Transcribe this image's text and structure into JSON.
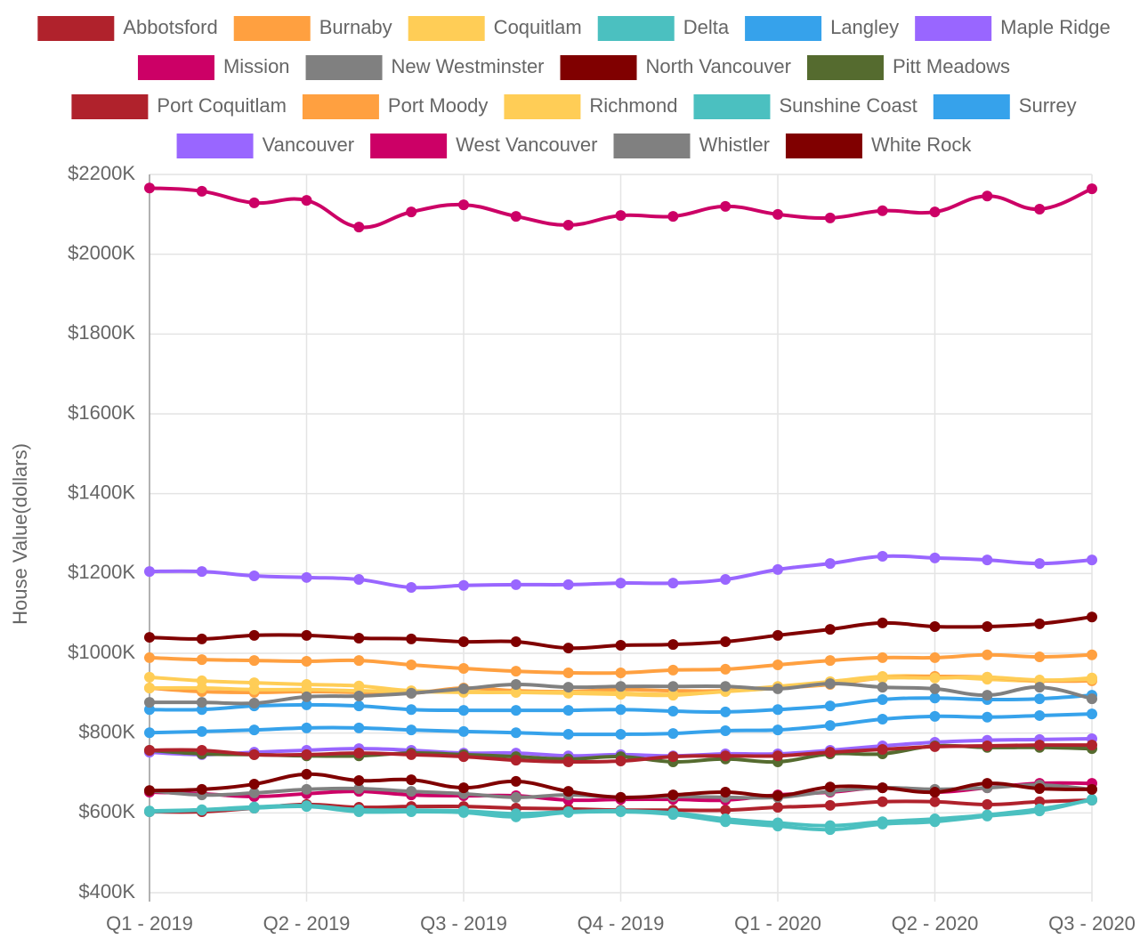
{
  "chart_data": {
    "type": "line",
    "y_label": "House Value(dollars)",
    "categories": [
      "Q1 - 2019",
      null,
      null,
      "Q2 - 2019",
      null,
      null,
      "Q3 - 2019",
      null,
      null,
      "Q4 - 2019",
      null,
      null,
      "Q1 - 2020",
      null,
      null,
      "Q2 - 2020",
      null,
      null,
      "Q3 - 2020"
    ],
    "ylim": [
      400000,
      2200000
    ],
    "yticks": [
      {
        "value": 400000,
        "label": "$400K"
      },
      {
        "value": 600000,
        "label": "$600K"
      },
      {
        "value": 800000,
        "label": "$800K"
      },
      {
        "value": 1000000,
        "label": "$1000K"
      },
      {
        "value": 1200000,
        "label": "$1200K"
      },
      {
        "value": 1400000,
        "label": "$1400K"
      },
      {
        "value": 1600000,
        "label": "$1600K"
      },
      {
        "value": 1800000,
        "label": "$1800K"
      },
      {
        "value": 2000000,
        "label": "$2000K"
      },
      {
        "value": 2200000,
        "label": "$2200K"
      }
    ],
    "grid": true,
    "legend": "top",
    "series": [
      {
        "name": "Abbotsford",
        "color": "#b0222c",
        "values": [
          603000,
          603000,
          612000,
          621000,
          614000,
          616000,
          616000,
          612000,
          610000,
          607000,
          607000,
          607000,
          614000,
          619000,
          628000,
          628000,
          621000,
          628000,
          632000
        ]
      },
      {
        "name": "Burnaby",
        "color": "#ffa040",
        "values": [
          989000,
          984000,
          982000,
          980000,
          982000,
          971000,
          962000,
          955000,
          951000,
          951000,
          958000,
          960000,
          971000,
          982000,
          989000,
          989000,
          996000,
          991000,
          996000
        ]
      },
      {
        "name": "Coquitlam",
        "color": "#ffcd56",
        "values": [
          940000,
          931000,
          926000,
          922000,
          918000,
          906000,
          904000,
          902000,
          900000,
          897000,
          895000,
          906000,
          917000,
          929000,
          942000,
          942000,
          935000,
          931000,
          938000
        ]
      },
      {
        "name": "Delta",
        "color": "#4bc0c0",
        "values": [
          603000,
          607000,
          612000,
          616000,
          603000,
          603000,
          601000,
          590000,
          601000,
          603000,
          596000,
          578000,
          567000,
          558000,
          572000,
          578000,
          592000,
          605000,
          634000
        ]
      },
      {
        "name": "Langley",
        "color": "#36a2eb",
        "values": [
          859000,
          859000,
          868000,
          871000,
          868000,
          859000,
          857000,
          857000,
          857000,
          859000,
          855000,
          853000,
          859000,
          868000,
          884000,
          888000,
          884000,
          886000,
          895000
        ]
      },
      {
        "name": "Maple Ridge",
        "color": "#9966ff",
        "values": [
          752000,
          746000,
          752000,
          757000,
          761000,
          757000,
          750000,
          750000,
          743000,
          746000,
          743000,
          748000,
          748000,
          757000,
          768000,
          777000,
          782000,
          784000,
          786000
        ]
      },
      {
        "name": "Mission",
        "color": "#cc0066",
        "values": [
          652000,
          648000,
          641000,
          648000,
          654000,
          645000,
          643000,
          643000,
          632000,
          634000,
          634000,
          632000,
          645000,
          652000,
          663000,
          652000,
          663000,
          674000,
          674000
        ]
      },
      {
        "name": "New Westminster",
        "color": "#808080",
        "values": [
          656000,
          645000,
          650000,
          659000,
          661000,
          654000,
          648000,
          639000,
          645000,
          639000,
          641000,
          639000,
          639000,
          654000,
          663000,
          659000,
          663000,
          670000,
          659000
        ]
      },
      {
        "name": "North Vancouver",
        "color": "#800000",
        "values": [
          1040000,
          1036000,
          1045000,
          1045000,
          1038000,
          1036000,
          1029000,
          1029000,
          1013000,
          1020000,
          1022000,
          1029000,
          1045000,
          1060000,
          1076000,
          1067000,
          1067000,
          1074000,
          1091000
        ]
      },
      {
        "name": "Pitt Meadows",
        "color": "#556b2f",
        "values": [
          757000,
          748000,
          746000,
          743000,
          743000,
          750000,
          746000,
          741000,
          735000,
          741000,
          728000,
          735000,
          728000,
          748000,
          748000,
          768000,
          764000,
          764000,
          761000
        ]
      },
      {
        "name": "Port Coquitlam",
        "color": "#b0222c",
        "values": [
          757000,
          757000,
          746000,
          746000,
          750000,
          746000,
          741000,
          732000,
          728000,
          730000,
          741000,
          743000,
          743000,
          752000,
          759000,
          766000,
          768000,
          770000,
          770000
        ]
      },
      {
        "name": "Port Moody",
        "color": "#ffa040",
        "values": [
          913000,
          904000,
          902000,
          904000,
          902000,
          900000,
          913000,
          906000,
          904000,
          909000,
          906000,
          906000,
          913000,
          922000,
          938000,
          942000,
          940000,
          931000,
          931000
        ]
      },
      {
        "name": "Richmond",
        "color": "#ffcd56",
        "values": [
          913000,
          913000,
          909000,
          909000,
          906000,
          904000,
          902000,
          902000,
          902000,
          900000,
          897000,
          904000,
          913000,
          924000,
          938000,
          938000,
          940000,
          933000,
          935000
        ]
      },
      {
        "name": "Sunshine Coast",
        "color": "#4bc0c0",
        "values": [
          605000,
          608000,
          615000,
          618000,
          608000,
          607000,
          605000,
          598000,
          603000,
          605000,
          600000,
          585000,
          575000,
          568000,
          578000,
          585000,
          595000,
          610000,
          632000
        ]
      },
      {
        "name": "Surrey",
        "color": "#36a2eb",
        "values": [
          801000,
          804000,
          808000,
          813000,
          813000,
          808000,
          804000,
          801000,
          797000,
          797000,
          799000,
          806000,
          808000,
          819000,
          835000,
          842000,
          840000,
          844000,
          848000
        ]
      },
      {
        "name": "Vancouver",
        "color": "#9966ff",
        "values": [
          1205000,
          1205000,
          1194000,
          1190000,
          1185000,
          1165000,
          1170000,
          1172000,
          1172000,
          1176000,
          1176000,
          1185000,
          1210000,
          1225000,
          1243000,
          1239000,
          1234000,
          1225000,
          1234000
        ]
      },
      {
        "name": "West Vancouver",
        "color": "#cc0066",
        "values": [
          2166000,
          2158000,
          2129000,
          2135000,
          2068000,
          2106000,
          2124000,
          2095000,
          2073000,
          2097000,
          2095000,
          2120000,
          2100000,
          2091000,
          2109000,
          2106000,
          2146000,
          2113000,
          2164000
        ]
      },
      {
        "name": "Whistler",
        "color": "#808080",
        "values": [
          877000,
          877000,
          875000,
          891000,
          893000,
          900000,
          911000,
          922000,
          915000,
          917000,
          917000,
          917000,
          911000,
          924000,
          915000,
          911000,
          895000,
          915000,
          886000
        ]
      },
      {
        "name": "White Rock",
        "color": "#800000",
        "values": [
          656000,
          659000,
          672000,
          697000,
          681000,
          683000,
          663000,
          679000,
          654000,
          639000,
          645000,
          652000,
          643000,
          665000,
          663000,
          652000,
          674000,
          661000,
          659000
        ]
      }
    ]
  }
}
